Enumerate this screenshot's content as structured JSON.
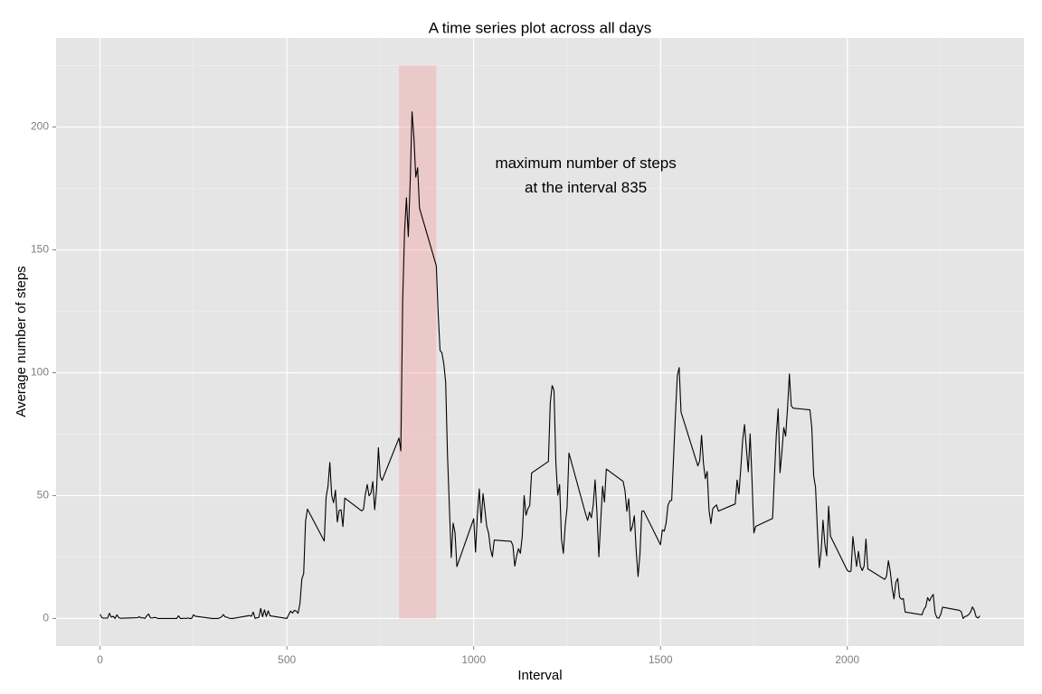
{
  "chart_data": {
    "type": "line",
    "title": "A time series plot across all days",
    "xlabel": "Interval",
    "ylabel": "Average number of steps",
    "x": [
      0,
      5,
      10,
      15,
      20,
      25,
      30,
      35,
      40,
      45,
      50,
      55,
      100,
      105,
      110,
      115,
      120,
      125,
      130,
      135,
      140,
      145,
      150,
      155,
      200,
      205,
      210,
      215,
      220,
      225,
      230,
      235,
      240,
      245,
      250,
      255,
      300,
      305,
      310,
      315,
      320,
      325,
      330,
      335,
      340,
      345,
      350,
      355,
      400,
      405,
      410,
      415,
      420,
      425,
      430,
      435,
      440,
      445,
      450,
      455,
      500,
      505,
      510,
      515,
      520,
      525,
      530,
      535,
      540,
      545,
      550,
      555,
      600,
      605,
      610,
      615,
      620,
      625,
      630,
      635,
      640,
      645,
      650,
      655,
      700,
      705,
      710,
      715,
      720,
      725,
      730,
      735,
      740,
      745,
      750,
      755,
      800,
      805,
      810,
      815,
      820,
      825,
      830,
      835,
      840,
      845,
      850,
      855,
      900,
      905,
      910,
      915,
      920,
      925,
      930,
      935,
      940,
      945,
      950,
      955,
      1000,
      1005,
      1010,
      1015,
      1020,
      1025,
      1030,
      1035,
      1040,
      1045,
      1050,
      1055,
      1100,
      1105,
      1110,
      1115,
      1120,
      1125,
      1130,
      1135,
      1140,
      1145,
      1150,
      1155,
      1200,
      1205,
      1210,
      1215,
      1220,
      1225,
      1230,
      1235,
      1240,
      1245,
      1250,
      1255,
      1300,
      1305,
      1310,
      1315,
      1320,
      1325,
      1330,
      1335,
      1340,
      1345,
      1350,
      1355,
      1400,
      1405,
      1410,
      1415,
      1420,
      1425,
      1430,
      1435,
      1440,
      1445,
      1450,
      1455,
      1500,
      1505,
      1510,
      1515,
      1520,
      1525,
      1530,
      1535,
      1540,
      1545,
      1550,
      1555,
      1600,
      1605,
      1610,
      1615,
      1620,
      1625,
      1630,
      1635,
      1640,
      1645,
      1650,
      1655,
      1700,
      1705,
      1710,
      1715,
      1720,
      1725,
      1730,
      1735,
      1740,
      1745,
      1750,
      1755,
      1800,
      1805,
      1810,
      1815,
      1820,
      1825,
      1830,
      1835,
      1840,
      1845,
      1850,
      1855,
      1900,
      1905,
      1910,
      1915,
      1920,
      1925,
      1930,
      1935,
      1940,
      1945,
      1950,
      1955,
      2000,
      2005,
      2010,
      2015,
      2020,
      2025,
      2030,
      2035,
      2040,
      2045,
      2050,
      2055,
      2100,
      2105,
      2110,
      2115,
      2120,
      2125,
      2130,
      2135,
      2140,
      2145,
      2150,
      2155,
      2200,
      2205,
      2210,
      2215,
      2220,
      2225,
      2230,
      2235,
      2240,
      2245,
      2250,
      2255,
      2300,
      2305,
      2310,
      2315,
      2320,
      2325,
      2330,
      2335,
      2340,
      2345,
      2350,
      2355
    ],
    "values": [
      1.7,
      0.3,
      0.1,
      0.2,
      0.1,
      2.1,
      0.5,
      0.9,
      0,
      1.5,
      0.3,
      0.1,
      0.3,
      0.7,
      0.2,
      0.3,
      0,
      1.1,
      1.8,
      0.2,
      0.2,
      0.4,
      0.3,
      0,
      0,
      0,
      1.1,
      0,
      0,
      0.1,
      0,
      0.2,
      0,
      0,
      1.5,
      0.9,
      0,
      0,
      0,
      0,
      0.2,
      0.6,
      1.6,
      0.6,
      0.5,
      0.1,
      0,
      0,
      1.2,
      0.9,
      2.6,
      0,
      0.3,
      0.4,
      4.1,
      0.7,
      3.5,
      0.8,
      3.1,
      1.1,
      0,
      1.6,
      3,
      2.2,
      3.3,
      3,
      2.1,
      6.1,
      16,
      18.3,
      39.5,
      44.5,
      31.5,
      49.3,
      53.8,
      63.5,
      50,
      47.1,
      52.2,
      39.3,
      44,
      44.2,
      37.4,
      49,
      43.8,
      44.4,
      50.5,
      54.5,
      49.9,
      51,
      55.7,
      44.3,
      52.3,
      69.5,
      57.8,
      56.2,
      73.4,
      68.2,
      129.4,
      157.5,
      171.2,
      155.4,
      177.3,
      206.2,
      195.9,
      179.6,
      183.4,
      167,
      143.5,
      124,
      109.1,
      108.1,
      103.7,
      96,
      66.2,
      45.2,
      24.8,
      38.8,
      35,
      21.1,
      40.6,
      27,
      42.4,
      52.7,
      38.9,
      50.8,
      44.3,
      37.4,
      34.7,
      28.3,
      25.1,
      31.9,
      31.4,
      29.7,
      21.3,
      25.5,
      28.4,
      26.5,
      33.4,
      50,
      42,
      44.6,
      46,
      59.2,
      63.9,
      87.7,
      94.8,
      92.8,
      63.4,
      50.2,
      54.5,
      32.4,
      26.5,
      37.7,
      45.1,
      67.3,
      42.3,
      39.9,
      43.3,
      41,
      46.2,
      56.4,
      42.8,
      25.1,
      39.5,
      53.8,
      47.4,
      60.8,
      55.8,
      52,
      43.6,
      48.7,
      35.5,
      37.5,
      41.8,
      27.5,
      17.1,
      26.1,
      43.6,
      43.8,
      30,
      36.1,
      35.5,
      38.8,
      46,
      47.8,
      48.1,
      65.3,
      82.9,
      98.7,
      102.1,
      84,
      62.1,
      64.1,
      74.5,
      63.2,
      56.9,
      59.8,
      43.9,
      38.6,
      44.7,
      45.5,
      46.2,
      43.7,
      46.6,
      56.3,
      50.7,
      61.2,
      72.7,
      78.9,
      68.9,
      59.7,
      75.1,
      56.5,
      34.8,
      37.5,
      40.7,
      58,
      74.7,
      85.3,
      59.3,
      67.8,
      77.7,
      74.2,
      85.3,
      99.5,
      86.6,
      85.6,
      84.9,
      77.8,
      58,
      53.4,
      36.3,
      20.7,
      27.4,
      40,
      30.2,
      25.5,
      45.7,
      33.5,
      19.6,
      19,
      19.3,
      33.3,
      26.8,
      21.2,
      27.3,
      21.3,
      19.5,
      21.3,
      32.3,
      20.2,
      15.9,
      17.2,
      23.5,
      19.2,
      12.5,
      8,
      14.7,
      16.3,
      8.7,
      7.8,
      8.1,
      2.6,
      1.5,
      3.7,
      4.8,
      8.5,
      7.1,
      8.7,
      9.8,
      2.2,
      0.3,
      0.1,
      1.6,
      4.6,
      3.3,
      2.8,
      0,
      0.8,
      1,
      1.6,
      2.6,
      4.7,
      3.3,
      0.6,
      0.2,
      1.1
    ],
    "color": "#000000",
    "highlight": {
      "x": [
        800,
        900
      ],
      "y": [
        0,
        225
      ],
      "color": "#f4a6a6"
    },
    "annotation": {
      "text": [
        "maximum number of steps",
        "at the interval 835"
      ],
      "x": 1300,
      "y": 180
    },
    "xlim": [
      -117.75,
      2472.75
    ],
    "ylim": [
      -11.25,
      236.25
    ],
    "xticks": [
      0,
      500,
      1000,
      1500,
      2000
    ],
    "yticks": [
      0,
      50,
      100,
      150,
      200
    ],
    "xminor": [
      250,
      750,
      1250,
      1750,
      2250
    ],
    "yminor": [
      25,
      75,
      125,
      175,
      225
    ],
    "grid": true
  }
}
